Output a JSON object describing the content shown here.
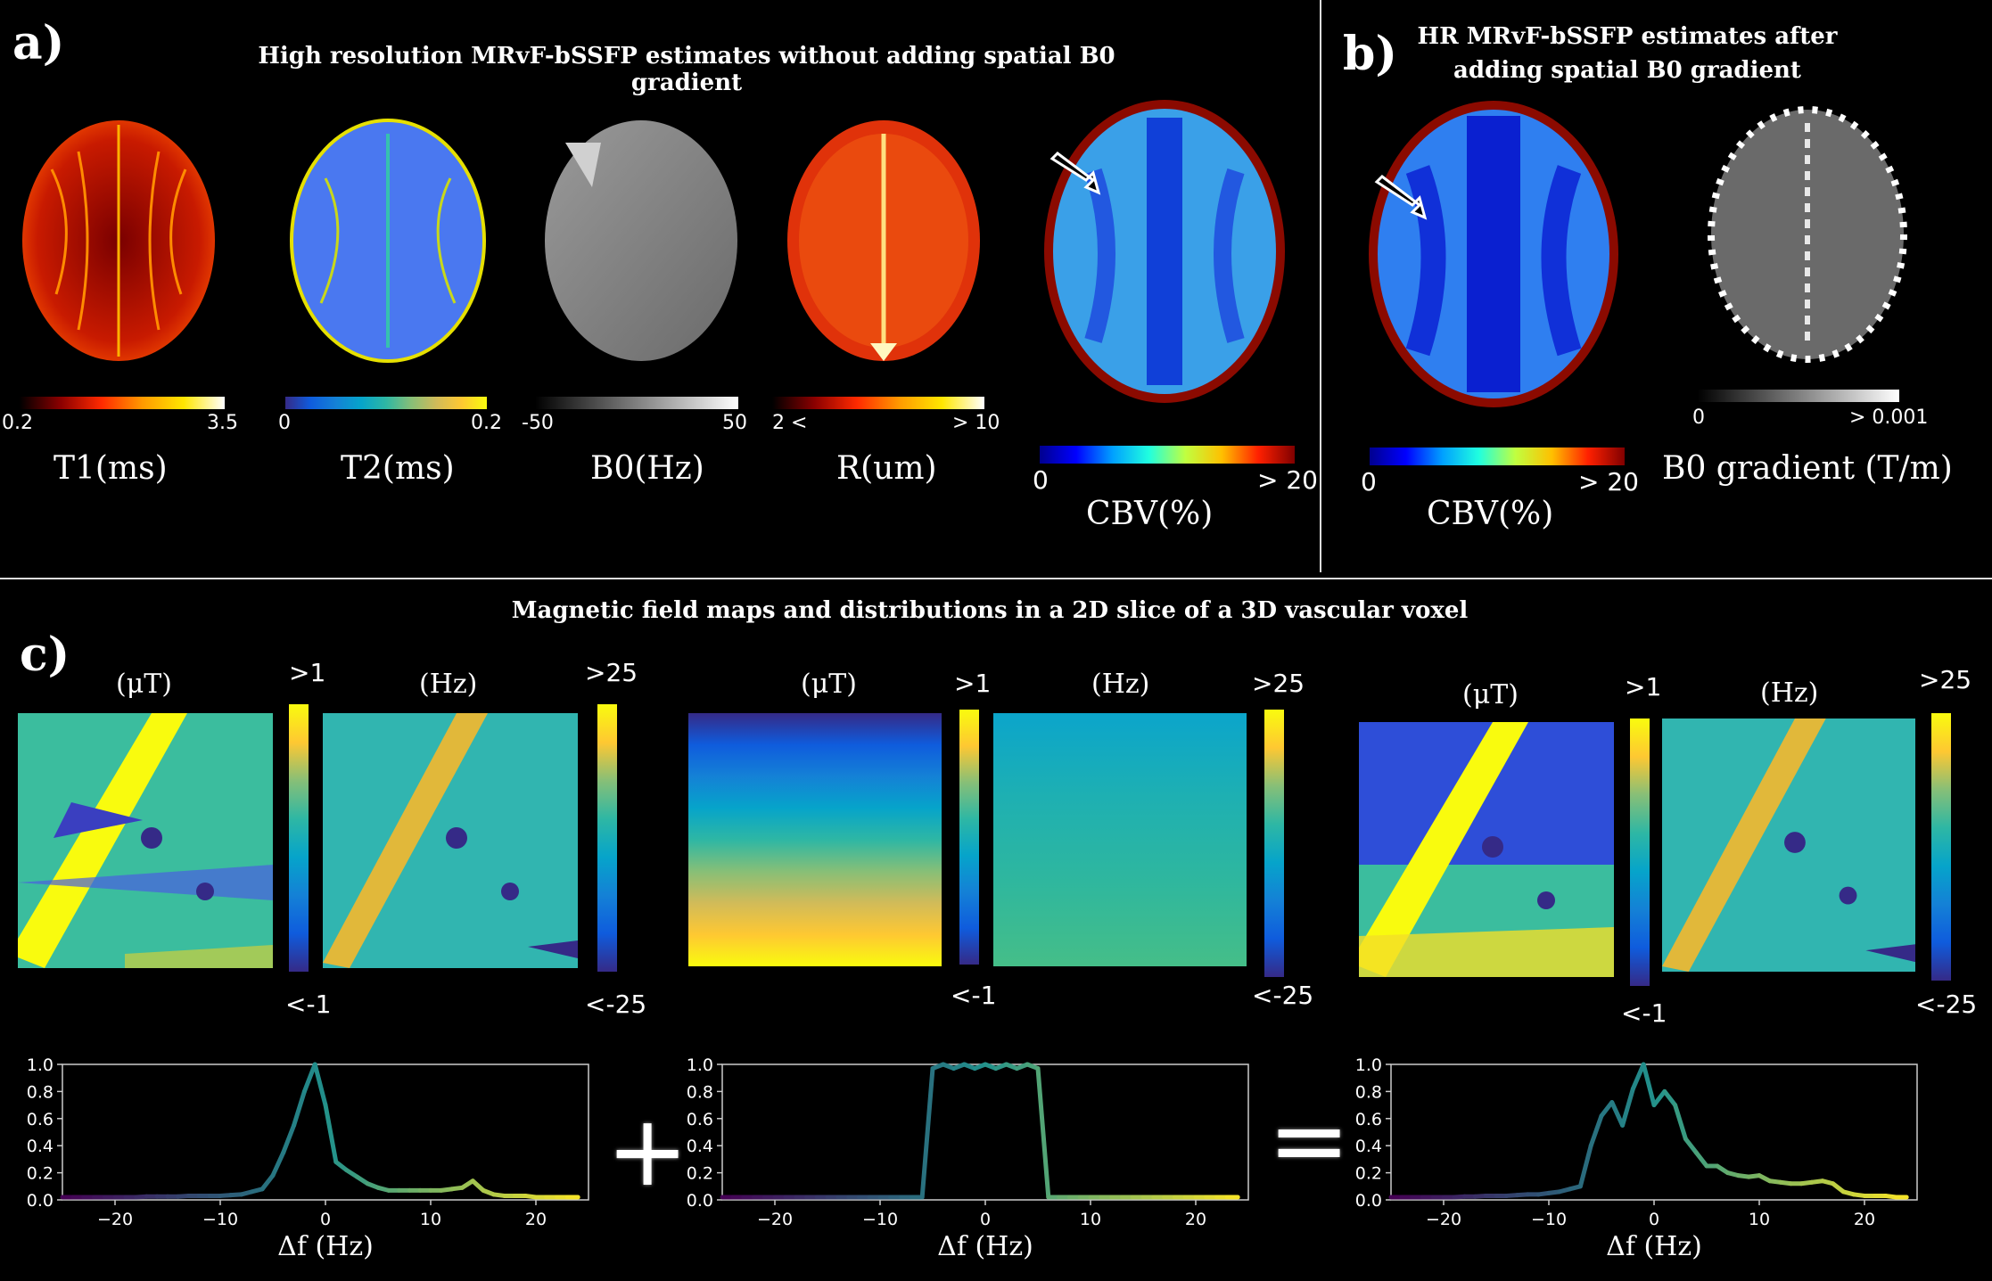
{
  "panel_a": {
    "letter": "a)",
    "title": "High resolution MRvF-bSSFP estimates without adding spatial B0 gradient",
    "maps": [
      {
        "label": "T1(ms)",
        "min": "0.2",
        "max": "3.5",
        "colormap": "hot"
      },
      {
        "label": "T2(ms)",
        "min": "0",
        "max": "0.2",
        "colormap": "parula"
      },
      {
        "label": "B0(Hz)",
        "min": "-50",
        "max": "50",
        "colormap": "gray"
      },
      {
        "label": "R(um)",
        "min": "2 <",
        "max": "> 10",
        "colormap": "hot"
      },
      {
        "label": "CBV(%)",
        "min": "0",
        "max": "> 20",
        "colormap": "jet"
      }
    ]
  },
  "panel_b": {
    "letter": "b)",
    "title_line1": "HR MRvF-bSSFP estimates after",
    "title_line2": "adding spatial B0 gradient",
    "maps": [
      {
        "label": "CBV(%)",
        "min": "0",
        "max": "> 20",
        "colormap": "jet"
      },
      {
        "label": "B0 gradient (T/m)",
        "min": "0",
        "max": "> 0.001",
        "colormap": "gray"
      }
    ]
  },
  "panel_c": {
    "letter": "c)",
    "title": "Magnetic field maps and distributions in a 2D slice of a 3D vascular voxel",
    "groups": [
      {
        "ut_label": "(μT)",
        "ut_max": ">1",
        "ut_min": "<-1",
        "hz_label": "(Hz)",
        "hz_max": ">25",
        "hz_min": "<-25"
      },
      {
        "ut_label": "(μT)",
        "ut_max": ">1",
        "ut_min": "<-1",
        "hz_label": "(Hz)",
        "hz_max": ">25",
        "hz_min": "<-25"
      },
      {
        "ut_label": "(μT)",
        "ut_max": ">1",
        "ut_min": "<-1",
        "hz_label": "(Hz)",
        "hz_max": ">25",
        "hz_min": "<-25"
      }
    ],
    "plus_sign": "+",
    "equals_sign": "="
  },
  "colors": {
    "background": "#000000",
    "parula_low": "#352a87",
    "parula_mid": "#21b3a6",
    "parula_high": "#f9fb0e",
    "viridis_low": "#440154",
    "viridis_mid": "#21918c",
    "viridis_high": "#fde725"
  },
  "chart_data": [
    {
      "type": "line",
      "title": "",
      "xlabel": "Δf (Hz)",
      "ylabel": "",
      "xlim": [
        -25,
        25
      ],
      "ylim": [
        0,
        1.0
      ],
      "xticks": [
        -20,
        -10,
        0,
        10,
        20
      ],
      "yticks": [
        0.0,
        0.2,
        0.4,
        0.6,
        0.8,
        1.0
      ],
      "colormap": "viridis",
      "x": [
        -25,
        -24,
        -23,
        -22,
        -21,
        -20,
        -19,
        -18,
        -17,
        -16,
        -15,
        -14,
        -13,
        -12,
        -11,
        -10,
        -9,
        -8,
        -7,
        -6,
        -5,
        -4,
        -3,
        -2,
        -1,
        0,
        1,
        2,
        3,
        4,
        5,
        6,
        7,
        8,
        9,
        10,
        11,
        12,
        13,
        14,
        15,
        16,
        17,
        18,
        19,
        20,
        21,
        22,
        23,
        24
      ],
      "y": [
        0.02,
        0.02,
        0.02,
        0.02,
        0.02,
        0.02,
        0.02,
        0.02,
        0.025,
        0.025,
        0.025,
        0.025,
        0.03,
        0.03,
        0.03,
        0.03,
        0.035,
        0.04,
        0.06,
        0.08,
        0.18,
        0.35,
        0.55,
        0.8,
        1.0,
        0.7,
        0.28,
        0.22,
        0.17,
        0.12,
        0.09,
        0.07,
        0.07,
        0.07,
        0.07,
        0.07,
        0.07,
        0.08,
        0.09,
        0.14,
        0.07,
        0.04,
        0.03,
        0.03,
        0.03,
        0.02,
        0.02,
        0.02,
        0.02,
        0.02
      ]
    },
    {
      "type": "line",
      "title": "",
      "xlabel": "Δf (Hz)",
      "ylabel": "",
      "xlim": [
        -25,
        25
      ],
      "ylim": [
        0,
        1.0
      ],
      "xticks": [
        -20,
        -10,
        0,
        10,
        20
      ],
      "yticks": [
        0.0,
        0.2,
        0.4,
        0.6,
        0.8,
        1.0
      ],
      "colormap": "viridis",
      "x": [
        -25,
        -24,
        -23,
        -22,
        -21,
        -20,
        -19,
        -18,
        -17,
        -16,
        -15,
        -14,
        -13,
        -12,
        -11,
        -10,
        -9,
        -8,
        -7,
        -6,
        -5,
        -4,
        -3,
        -2,
        -1,
        0,
        1,
        2,
        3,
        4,
        5,
        6,
        7,
        8,
        9,
        10,
        11,
        12,
        13,
        14,
        15,
        16,
        17,
        18,
        19,
        20,
        21,
        22,
        23,
        24
      ],
      "y": [
        0.02,
        0.02,
        0.02,
        0.02,
        0.02,
        0.02,
        0.02,
        0.02,
        0.02,
        0.02,
        0.02,
        0.02,
        0.02,
        0.02,
        0.02,
        0.02,
        0.02,
        0.02,
        0.02,
        0.02,
        0.97,
        1.0,
        0.97,
        1.0,
        0.97,
        1.0,
        0.97,
        1.0,
        0.97,
        1.0,
        0.97,
        0.02,
        0.02,
        0.02,
        0.02,
        0.02,
        0.02,
        0.02,
        0.02,
        0.02,
        0.02,
        0.02,
        0.02,
        0.02,
        0.02,
        0.02,
        0.02,
        0.02,
        0.02,
        0.02
      ]
    },
    {
      "type": "line",
      "title": "",
      "xlabel": "Δf (Hz)",
      "ylabel": "",
      "xlim": [
        -25,
        25
      ],
      "ylim": [
        0,
        1.0
      ],
      "xticks": [
        -20,
        -10,
        0,
        10,
        20
      ],
      "yticks": [
        0.0,
        0.2,
        0.4,
        0.6,
        0.8,
        1.0
      ],
      "colormap": "viridis",
      "x": [
        -25,
        -24,
        -23,
        -22,
        -21,
        -20,
        -19,
        -18,
        -17,
        -16,
        -15,
        -14,
        -13,
        -12,
        -11,
        -10,
        -9,
        -8,
        -7,
        -6,
        -5,
        -4,
        -3,
        -2,
        -1,
        0,
        1,
        2,
        3,
        4,
        5,
        6,
        7,
        8,
        9,
        10,
        11,
        12,
        13,
        14,
        15,
        16,
        17,
        18,
        19,
        20,
        21,
        22,
        23,
        24
      ],
      "y": [
        0.02,
        0.02,
        0.02,
        0.02,
        0.02,
        0.02,
        0.02,
        0.025,
        0.025,
        0.03,
        0.03,
        0.03,
        0.035,
        0.04,
        0.04,
        0.05,
        0.06,
        0.08,
        0.1,
        0.4,
        0.62,
        0.72,
        0.55,
        0.82,
        1.0,
        0.7,
        0.8,
        0.7,
        0.45,
        0.35,
        0.25,
        0.25,
        0.2,
        0.18,
        0.17,
        0.18,
        0.14,
        0.13,
        0.12,
        0.12,
        0.13,
        0.14,
        0.12,
        0.06,
        0.04,
        0.03,
        0.03,
        0.03,
        0.02,
        0.02
      ]
    }
  ]
}
